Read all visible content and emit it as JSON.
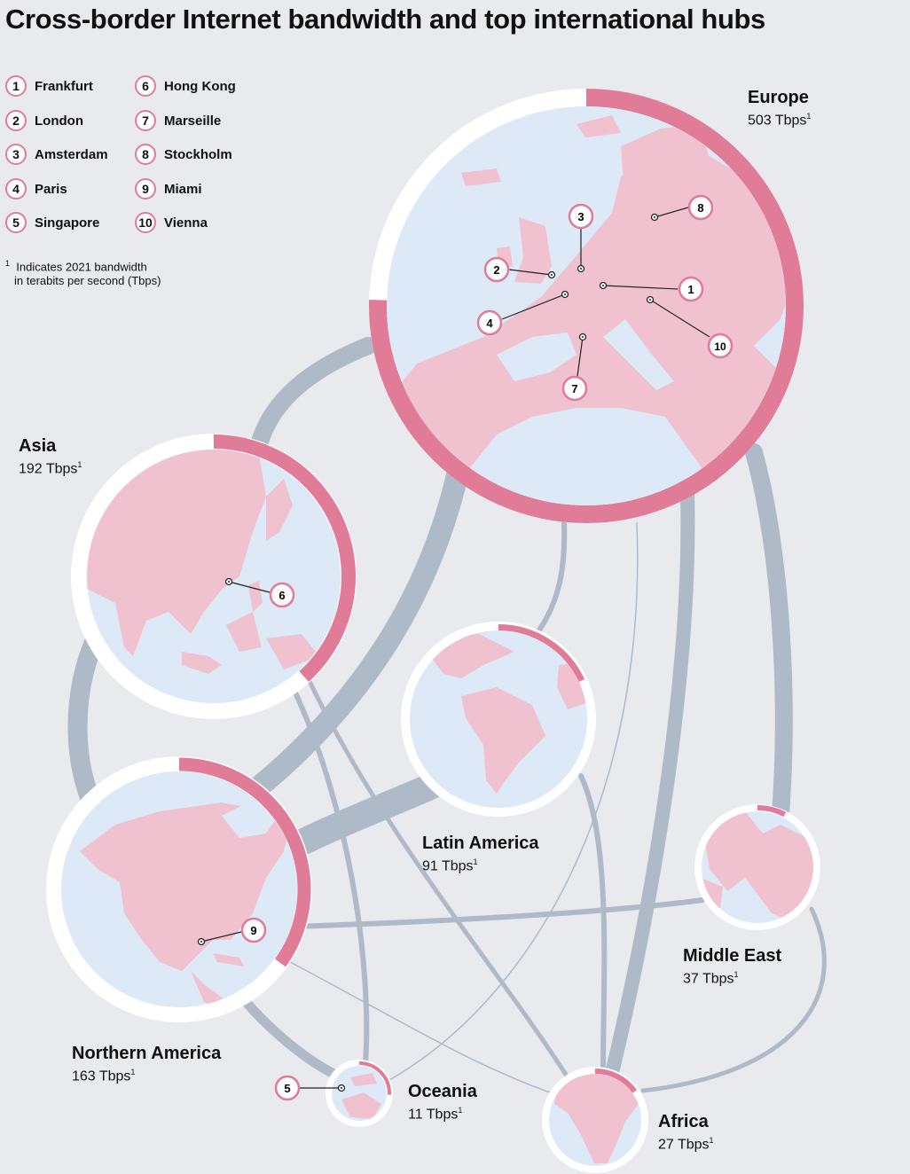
{
  "title": "Cross-border Internet bandwidth and top international hubs",
  "colors": {
    "background": "#e8eaee",
    "link": "#aebac7",
    "accent": "#e07b98",
    "land": "#f0c2cf",
    "sea": "#dde9f6",
    "ring_base": "#ffffff"
  },
  "hubs": [
    {
      "rank": "1",
      "name": "Frankfurt"
    },
    {
      "rank": "2",
      "name": "London"
    },
    {
      "rank": "3",
      "name": "Amsterdam"
    },
    {
      "rank": "4",
      "name": "Paris"
    },
    {
      "rank": "5",
      "name": "Singapore"
    },
    {
      "rank": "6",
      "name": "Hong Kong"
    },
    {
      "rank": "7",
      "name": "Marseille"
    },
    {
      "rank": "8",
      "name": "Stockholm"
    },
    {
      "rank": "9",
      "name": "Miami"
    },
    {
      "rank": "10",
      "name": "Vienna"
    }
  ],
  "footnote": {
    "mark": "1",
    "line1": "Indicates 2021 bandwidth",
    "line2": "in terabits per second (Tbps)"
  },
  "regions": {
    "europe": {
      "name": "Europe",
      "value": "503 Tbps",
      "bandwidth_tbps": 503,
      "hubs": [
        "1",
        "2",
        "3",
        "4",
        "7",
        "8",
        "10"
      ]
    },
    "asia": {
      "name": "Asia",
      "value": "192 Tbps",
      "bandwidth_tbps": 192,
      "hubs": [
        "6"
      ]
    },
    "latam": {
      "name": "Latin America",
      "value": "91 Tbps",
      "bandwidth_tbps": 91,
      "hubs": []
    },
    "mideast": {
      "name": "Middle East",
      "value": "37 Tbps",
      "bandwidth_tbps": 37,
      "hubs": []
    },
    "namerica": {
      "name": "Northern America",
      "value": "163 Tbps",
      "bandwidth_tbps": 163,
      "hubs": [
        "9"
      ]
    },
    "oceania": {
      "name": "Oceania",
      "value": "11 Tbps",
      "bandwidth_tbps": 11,
      "hubs": [
        "5"
      ]
    },
    "africa": {
      "name": "Africa",
      "value": "27 Tbps",
      "bandwidth_tbps": 27,
      "hubs": []
    }
  },
  "links": [
    {
      "from": "europe",
      "to": "namerica",
      "weight": "very-high"
    },
    {
      "from": "europe",
      "to": "asia",
      "weight": "high"
    },
    {
      "from": "namerica",
      "to": "latam",
      "weight": "high"
    },
    {
      "from": "asia",
      "to": "namerica",
      "weight": "high"
    },
    {
      "from": "europe",
      "to": "mideast",
      "weight": "medium"
    },
    {
      "from": "europe",
      "to": "africa",
      "weight": "medium"
    },
    {
      "from": "europe",
      "to": "latam",
      "weight": "low"
    },
    {
      "from": "asia",
      "to": "oceania",
      "weight": "low"
    },
    {
      "from": "asia",
      "to": "africa",
      "weight": "low"
    },
    {
      "from": "namerica",
      "to": "oceania",
      "weight": "low"
    },
    {
      "from": "namerica",
      "to": "mideast",
      "weight": "low"
    },
    {
      "from": "latam",
      "to": "africa",
      "weight": "low"
    },
    {
      "from": "mideast",
      "to": "africa",
      "weight": "low"
    },
    {
      "from": "europe",
      "to": "oceania",
      "weight": "very-low"
    },
    {
      "from": "namerica",
      "to": "africa",
      "weight": "very-low"
    }
  ]
}
